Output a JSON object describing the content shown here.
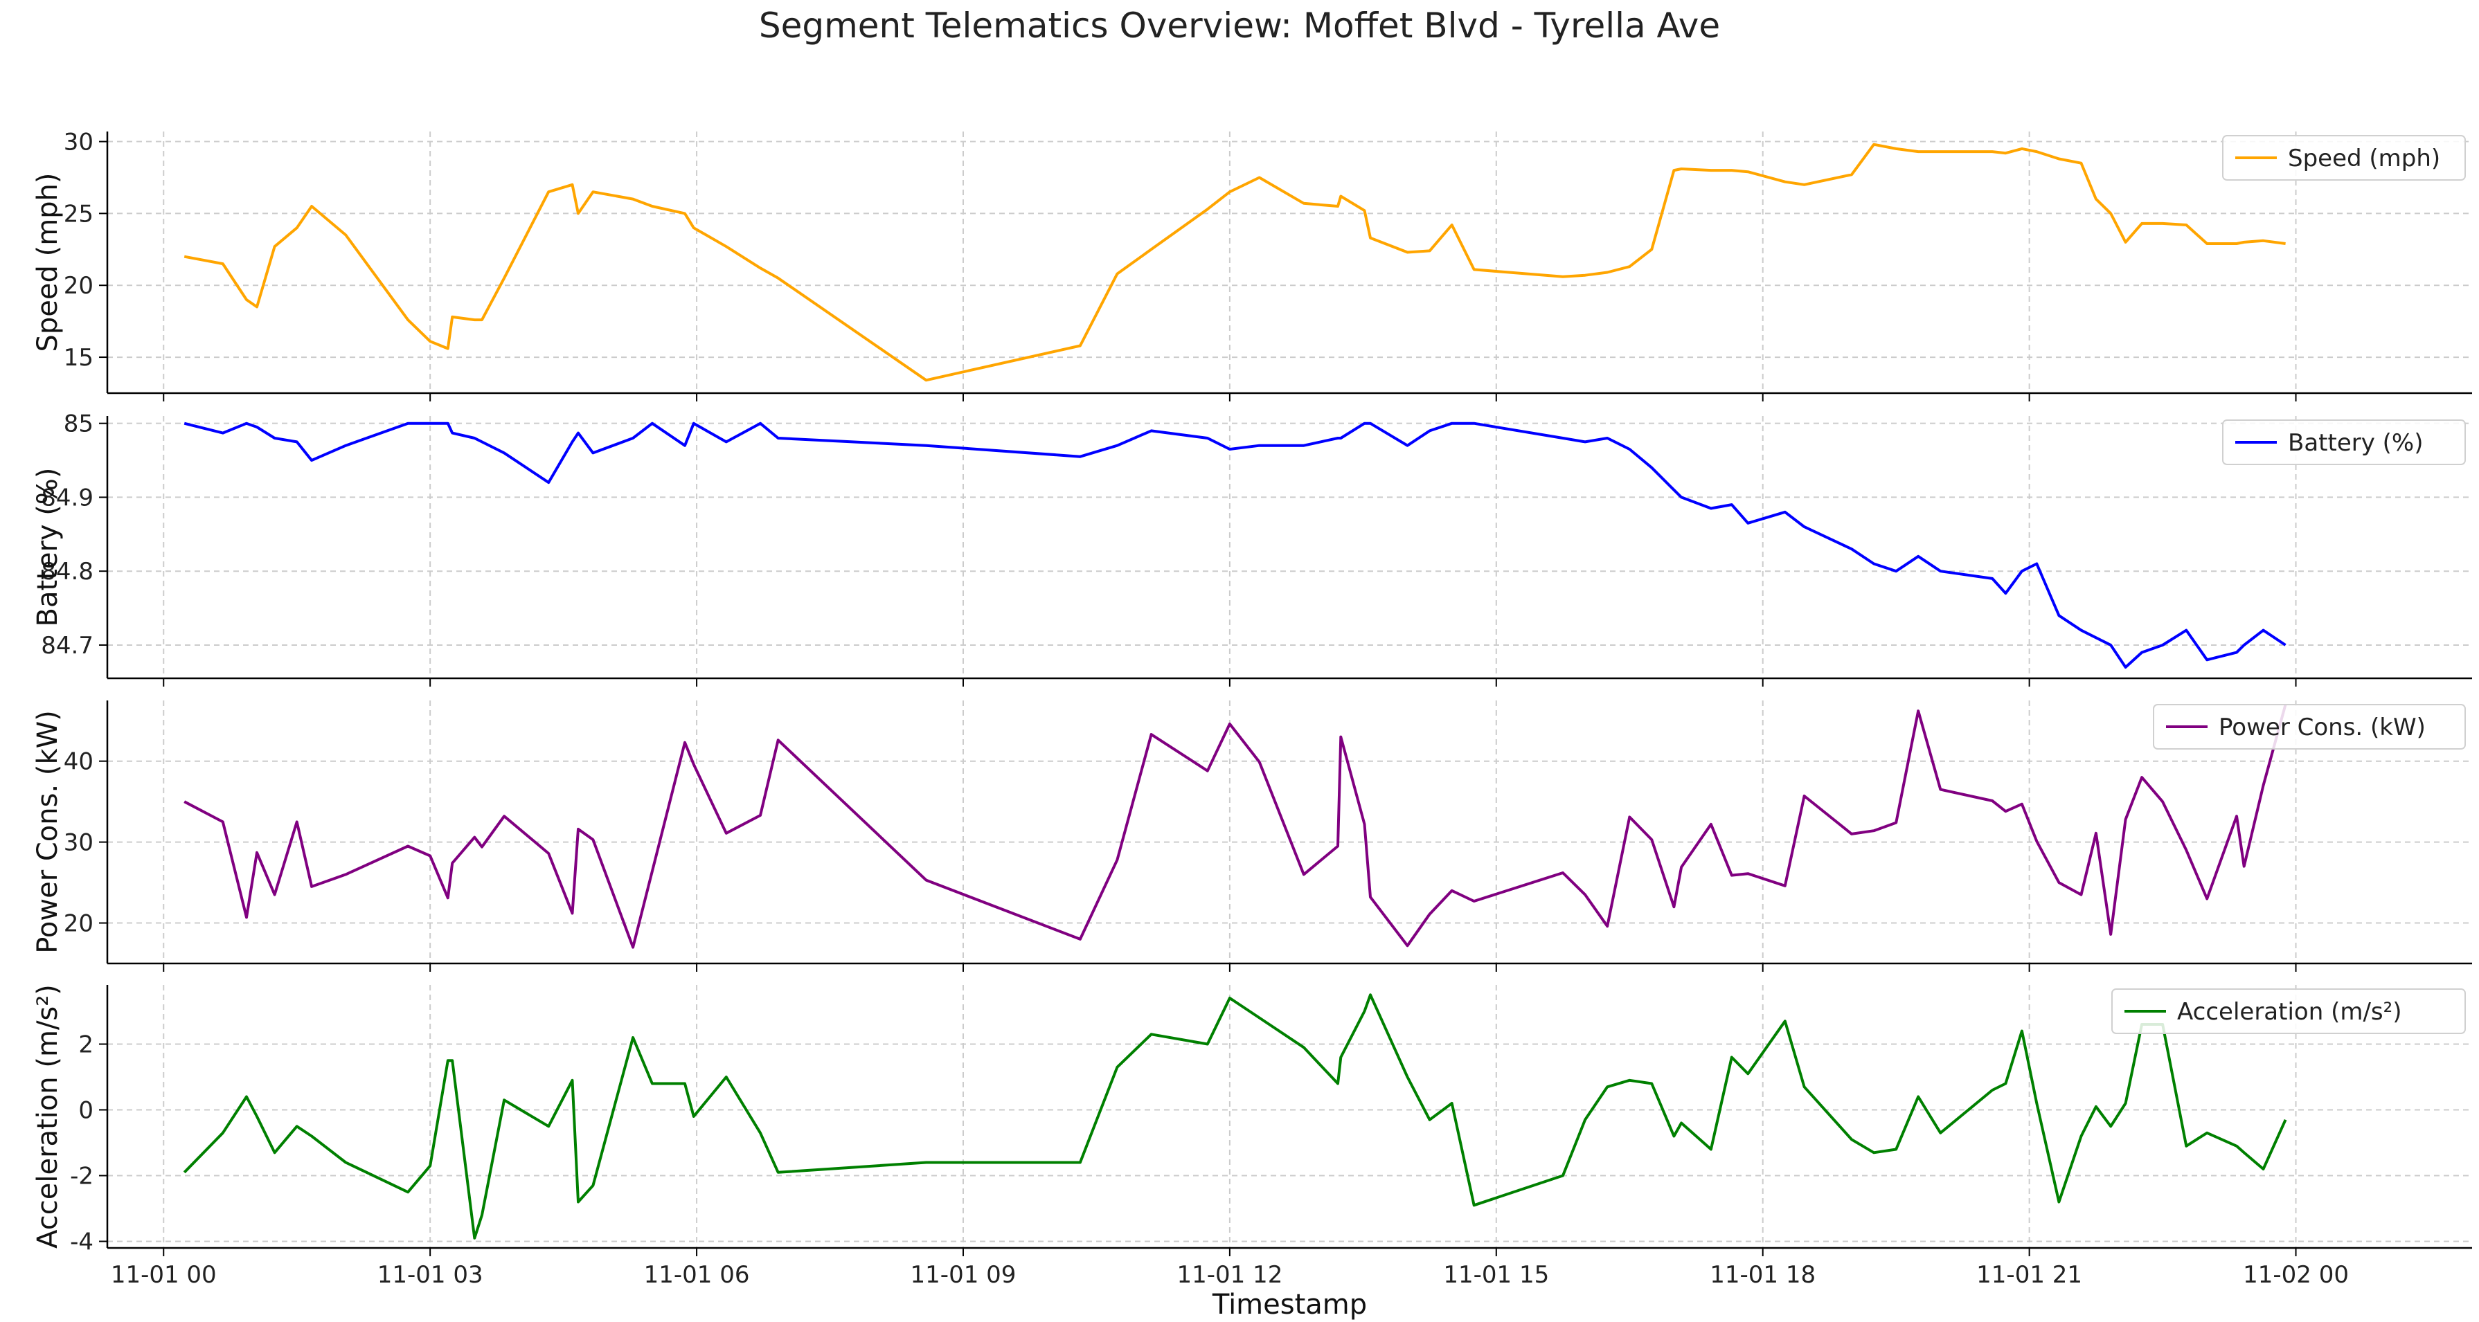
{
  "chart_data": {
    "type": "line",
    "title": "Segment Telematics Overview: Moffet Blvd - Tyrella Ave",
    "xlabel": "Timestamp",
    "x_axis": {
      "type": "time",
      "range": [
        "2023-10-31 23:22",
        "2023-11-02 01:59"
      ],
      "tick_labels": [
        "11-01 00",
        "11-01 03",
        "11-01 06",
        "11-01 09",
        "11-01 12",
        "11-01 15",
        "11-01 18",
        "11-01 21",
        "11-02 00"
      ]
    },
    "grid": true,
    "shared_x": true,
    "x": [
      "00:14",
      "00:40",
      "00:56",
      "01:03",
      "01:15",
      "01:30",
      "01:40",
      "02:03",
      "02:45",
      "03:00",
      "03:12",
      "03:15",
      "03:30",
      "03:35",
      "03:50",
      "04:20",
      "04:36",
      "04:40",
      "04:50",
      "05:17",
      "05:30",
      "05:52",
      "05:58",
      "06:20",
      "06:43",
      "06:55",
      "08:35",
      "10:19",
      "10:44",
      "11:07",
      "11:45",
      "12:00",
      "12:20",
      "12:50",
      "13:13",
      "13:15",
      "13:31",
      "13:35",
      "14:00",
      "14:15",
      "14:30",
      "14:45",
      "15:45",
      "16:00",
      "16:15",
      "16:30",
      "16:45",
      "17:00",
      "17:05",
      "17:25",
      "17:39",
      "17:50",
      "18:15",
      "18:28",
      "19:00",
      "19:15",
      "19:30",
      "19:45",
      "20:00",
      "20:35",
      "20:44",
      "20:55",
      "21:05",
      "21:20",
      "21:35",
      "21:45",
      "21:55",
      "22:05",
      "22:16",
      "22:30",
      "22:46",
      "23:00",
      "23:20",
      "23:25",
      "23:38",
      "23:53"
    ],
    "subplots": [
      {
        "ylabel": "Speed (mph)",
        "ylim": [
          12.5,
          30.7
        ],
        "yticks": [
          15,
          20,
          25,
          30
        ],
        "series": [
          {
            "name": "Speed (mph)",
            "color": "#ffa500",
            "values": [
              22.0,
              21.5,
              19.0,
              18.5,
              22.7,
              24.0,
              25.5,
              23.5,
              17.6,
              16.1,
              15.6,
              17.8,
              17.6,
              17.6,
              20.5,
              26.5,
              27.0,
              25.0,
              26.5,
              26.0,
              25.5,
              25.0,
              24.0,
              22.7,
              21.2,
              20.5,
              13.4,
              15.8,
              20.8,
              22.5,
              25.3,
              26.5,
              27.5,
              25.7,
              25.5,
              26.2,
              25.2,
              23.3,
              22.3,
              22.4,
              24.2,
              21.1,
              20.6,
              20.7,
              20.9,
              21.3,
              22.5,
              28.0,
              28.1,
              28.0,
              28.0,
              27.9,
              27.2,
              27.0,
              27.7,
              29.8,
              29.5,
              29.3,
              29.3,
              29.3,
              29.2,
              29.5,
              29.3,
              28.8,
              28.5,
              26.0,
              25.0,
              23.0,
              24.3,
              24.3,
              24.2,
              22.9,
              22.9,
              23.0,
              23.1,
              22.9
            ]
          }
        ]
      },
      {
        "ylabel": "Battery (%)",
        "ylim": [
          84.655,
          85.01
        ],
        "yticks": [
          84.7,
          84.8,
          84.9,
          85.0
        ],
        "series": [
          {
            "name": "Battery (%)",
            "color": "#0000ff",
            "values": [
              85.0,
              84.987,
              85.0,
              84.995,
              84.98,
              84.975,
              84.95,
              84.97,
              85.0,
              85.0,
              85.0,
              84.987,
              84.98,
              84.975,
              84.96,
              84.92,
              84.975,
              84.987,
              84.96,
              84.98,
              85.0,
              84.97,
              85.0,
              84.975,
              85.0,
              84.98,
              84.97,
              84.955,
              84.97,
              84.99,
              84.98,
              84.965,
              84.97,
              84.97,
              84.98,
              84.98,
              85.0,
              85.0,
              84.97,
              84.99,
              85.0,
              85.0,
              84.98,
              84.975,
              84.98,
              84.965,
              84.94,
              84.91,
              84.9,
              84.885,
              84.89,
              84.865,
              84.88,
              84.86,
              84.83,
              84.81,
              84.8,
              84.82,
              84.8,
              84.79,
              84.77,
              84.8,
              84.81,
              84.74,
              84.72,
              84.71,
              84.7,
              84.67,
              84.69,
              84.7,
              84.72,
              84.68,
              84.69,
              84.7,
              84.72,
              84.7
            ]
          }
        ]
      },
      {
        "ylabel": "Power Cons. (kW)",
        "ylim": [
          15,
          47.5
        ],
        "yticks": [
          20,
          30,
          40
        ],
        "series": [
          {
            "name": "Power Cons. (kW)",
            "color": "#800080",
            "values": [
              35.0,
              32.5,
              20.7,
              28.7,
              23.5,
              32.5,
              24.5,
              26.0,
              29.5,
              28.3,
              23.1,
              27.4,
              30.6,
              29.4,
              33.2,
              28.6,
              21.2,
              31.6,
              30.3,
              17.0,
              26.4,
              42.3,
              39.6,
              31.1,
              33.3,
              42.6,
              25.3,
              18.0,
              27.8,
              43.3,
              38.8,
              44.6,
              39.9,
              26.0,
              29.5,
              43.0,
              32.2,
              23.2,
              17.2,
              21.1,
              24.0,
              22.7,
              26.2,
              23.5,
              19.6,
              33.1,
              30.3,
              22.0,
              26.9,
              32.2,
              25.9,
              26.1,
              24.6,
              35.7,
              31.0,
              31.4,
              32.4,
              46.2,
              36.5,
              35.1,
              33.8,
              34.7,
              30.1,
              25.0,
              23.5,
              31.1,
              18.6,
              32.8,
              38.0,
              35.0,
              29.0,
              23.0,
              33.2,
              27.0,
              37.0,
              47.0
            ]
          }
        ]
      },
      {
        "ylabel": "Acceleration (m/s²)",
        "ylim": [
          -4.2,
          3.8
        ],
        "yticks": [
          -4,
          -2,
          0,
          2
        ],
        "series": [
          {
            "name": "Acceleration (m/s²)",
            "color": "#008000",
            "values": [
              -1.9,
              -0.7,
              0.4,
              -0.2,
              -1.3,
              -0.5,
              -0.8,
              -1.6,
              -2.5,
              -1.7,
              1.5,
              1.5,
              -3.9,
              -3.2,
              0.3,
              -0.5,
              0.9,
              -2.8,
              -2.3,
              2.2,
              0.8,
              0.8,
              -0.2,
              1.0,
              -0.7,
              -1.9,
              -1.6,
              -1.6,
              1.3,
              2.3,
              2.0,
              3.4,
              2.8,
              1.9,
              0.8,
              1.6,
              3.0,
              3.5,
              1.0,
              -0.3,
              0.2,
              -2.9,
              -2.0,
              -0.3,
              0.7,
              0.9,
              0.8,
              -0.8,
              -0.4,
              -1.2,
              1.6,
              1.1,
              2.7,
              0.7,
              -0.9,
              -1.3,
              -1.2,
              0.4,
              -0.7,
              0.6,
              0.8,
              2.4,
              0.2,
              -2.8,
              -0.8,
              0.1,
              -0.5,
              0.2,
              2.6,
              2.6,
              -1.1,
              -0.7,
              -1.1,
              -1.3,
              -1.8,
              -0.3
            ]
          }
        ]
      }
    ]
  }
}
